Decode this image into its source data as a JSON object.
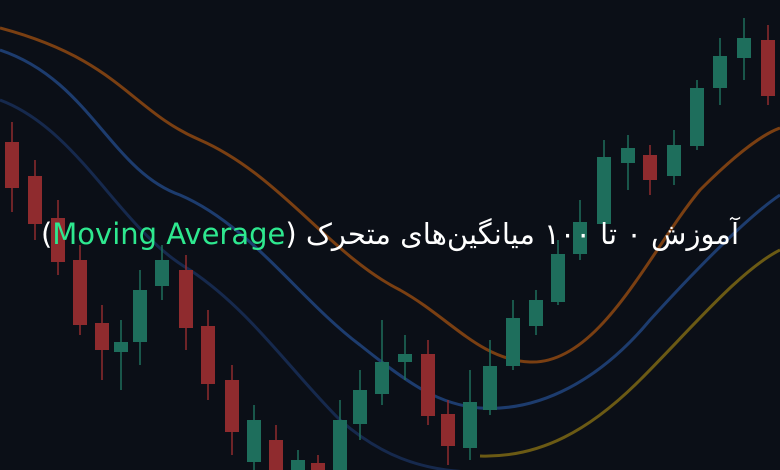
{
  "title": {
    "text": "آموزش ۰ تا ۱۰۰ میانگین‌های متحرک",
    "open": "(",
    "highlight": "Moving Average",
    "close": ")"
  }
}
